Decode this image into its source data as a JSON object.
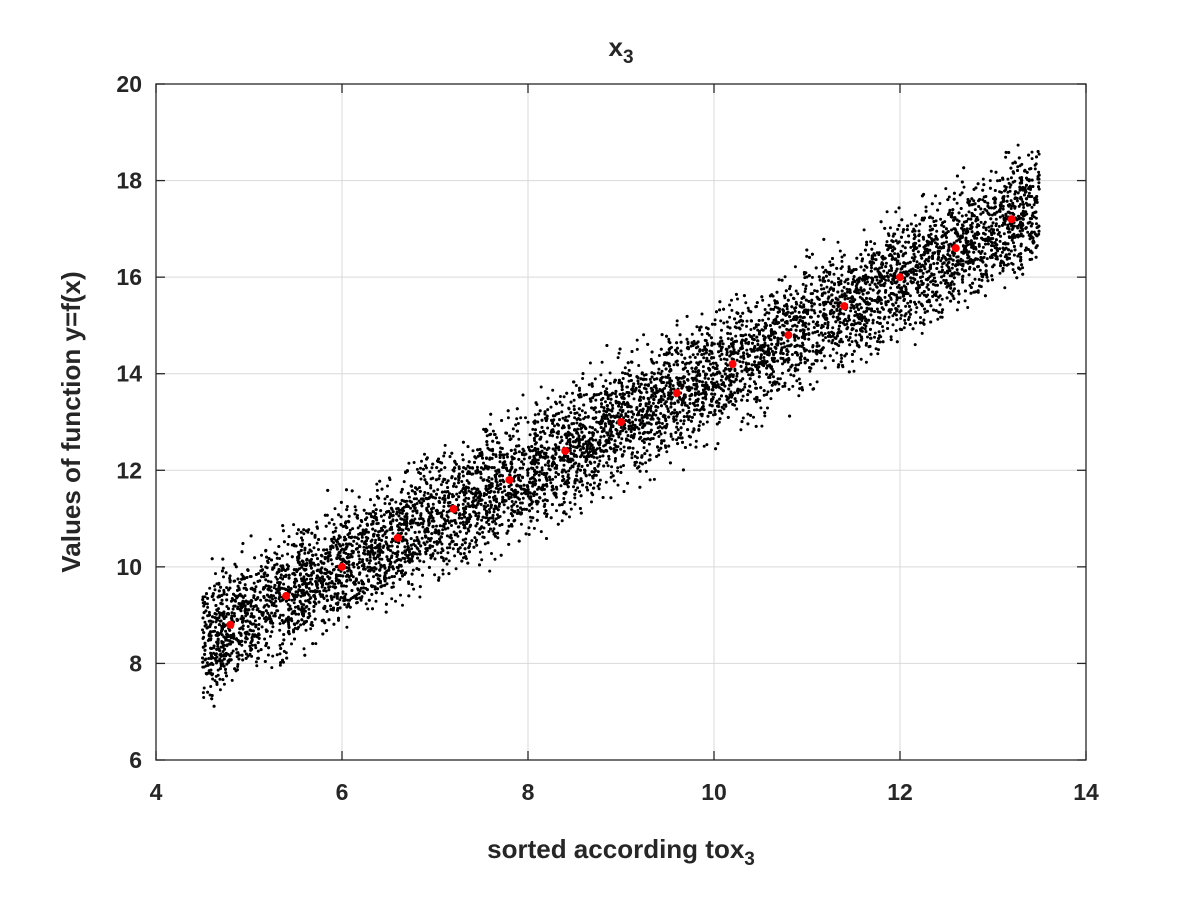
{
  "chart_data": {
    "type": "scatter",
    "title_base": "x",
    "title_sub": "3",
    "xlabel_base": "sorted according tox",
    "xlabel_sub": "3",
    "ylabel": "Values of function y=f(x)",
    "xlim": [
      4,
      14
    ],
    "ylim": [
      6,
      20
    ],
    "xticks": [
      4,
      6,
      8,
      10,
      12,
      14
    ],
    "yticks": [
      6,
      8,
      10,
      12,
      14,
      16,
      18,
      20
    ],
    "grid": true,
    "series": [
      {
        "kind": "cloud",
        "color": "#000000",
        "x_range": [
          4.5,
          13.5
        ],
        "band_center": [
          [
            4.5,
            8.5
          ],
          [
            13.5,
            17.5
          ]
        ],
        "band_halfwidth": 1.8,
        "approx_points": 10000
      },
      {
        "kind": "means",
        "color": "#ff0000",
        "x": [
          4.8,
          5.4,
          6.0,
          6.6,
          7.2,
          7.8,
          8.4,
          9.0,
          9.6,
          10.2,
          10.8,
          11.4,
          12.0,
          12.6,
          13.2
        ],
        "y": [
          8.8,
          9.4,
          10.0,
          10.6,
          11.2,
          11.8,
          12.4,
          13.0,
          13.6,
          14.2,
          14.8,
          15.4,
          16.0,
          16.6,
          17.2
        ]
      }
    ]
  }
}
